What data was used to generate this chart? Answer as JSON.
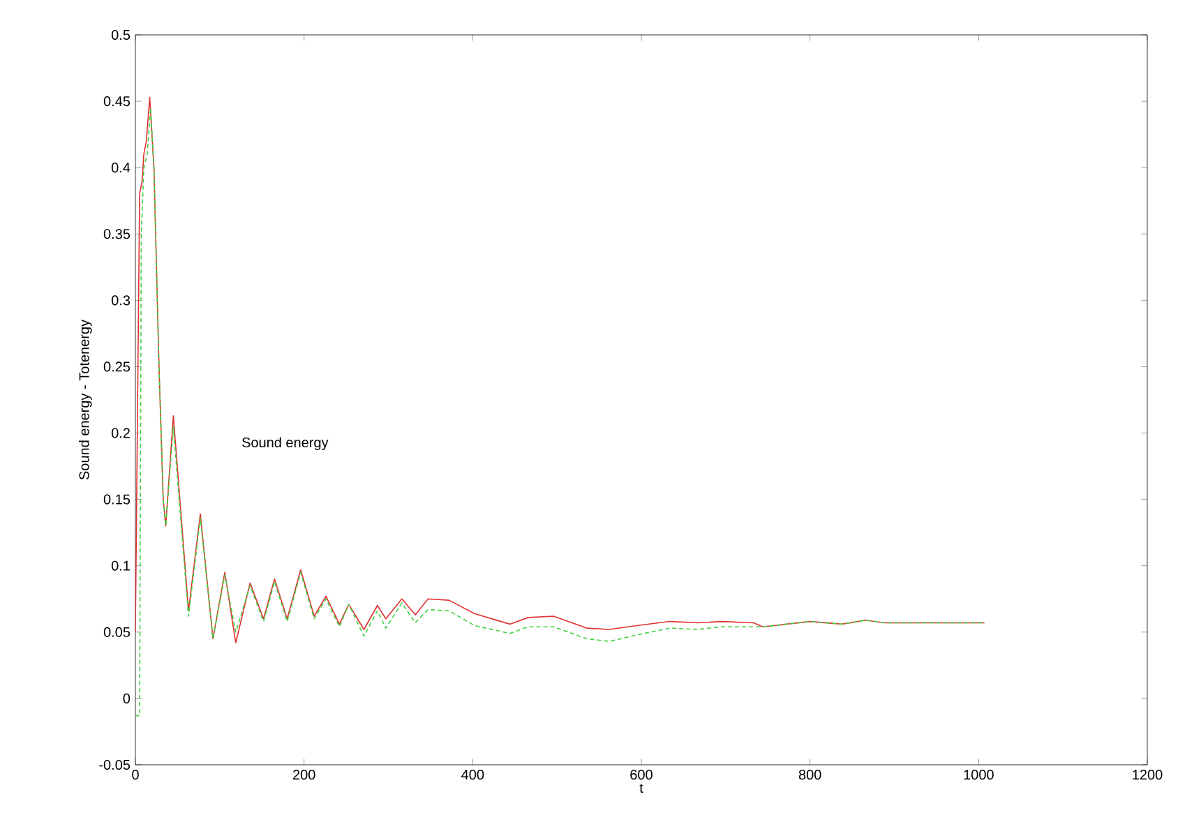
{
  "chart_data": {
    "type": "line",
    "xlabel": "t",
    "ylabel": "Sound energy - Totenergy",
    "annotations": [
      "Sound energy"
    ],
    "xlim": [
      0,
      1200
    ],
    "ylim": [
      -0.05,
      0.5
    ],
    "xticks": [
      0,
      200,
      400,
      600,
      800,
      1000,
      1200
    ],
    "yticks": [
      -0.05,
      0,
      0.05,
      0.1,
      0.15,
      0.2,
      0.25,
      0.3,
      0.35,
      0.4,
      0.45,
      0.5
    ],
    "marker": "none",
    "series": [
      {
        "color": "#e03030",
        "line_style": "solid",
        "x": [
          0,
          5,
          8,
          10,
          13,
          17,
          22,
          28,
          33,
          36,
          45,
          63,
          77,
          92,
          106,
          119,
          136,
          152,
          165,
          180,
          196,
          212,
          226,
          242,
          253,
          271,
          287,
          297,
          316,
          332,
          347,
          372,
          402,
          444,
          466,
          496,
          535,
          562,
          596,
          634,
          667,
          695,
          733,
          744,
          800,
          838,
          866,
          888,
          1007
        ],
        "values": [
          0.05,
          0.38,
          0.39,
          0.41,
          0.42,
          0.453,
          0.4,
          0.25,
          0.15,
          0.13,
          0.213,
          0.066,
          0.139,
          0.045,
          0.095,
          0.042,
          0.087,
          0.06,
          0.09,
          0.06,
          0.097,
          0.062,
          0.077,
          0.056,
          0.071,
          0.052,
          0.07,
          0.06,
          0.075,
          0.063,
          0.075,
          0.074,
          0.064,
          0.056,
          0.061,
          0.062,
          0.053,
          0.052,
          0.055,
          0.058,
          0.057,
          0.058,
          0.057,
          0.054,
          0.058,
          0.056,
          0.059,
          0.057,
          0.057
        ]
      },
      {
        "color": "#40d040",
        "line_style": "dashed",
        "x": [
          0,
          5,
          7,
          10,
          14,
          18,
          22,
          28,
          33,
          36,
          45,
          63,
          77,
          92,
          106,
          119,
          136,
          152,
          165,
          180,
          196,
          212,
          226,
          242,
          253,
          271,
          287,
          297,
          316,
          332,
          347,
          372,
          402,
          444,
          466,
          496,
          535,
          562,
          596,
          634,
          667,
          695,
          733,
          744,
          800,
          838,
          866,
          888,
          1007
        ],
        "values": [
          -0.013,
          -0.013,
          0.35,
          0.4,
          0.41,
          0.445,
          0.4,
          0.25,
          0.15,
          0.13,
          0.205,
          0.062,
          0.136,
          0.045,
          0.093,
          0.05,
          0.085,
          0.058,
          0.088,
          0.058,
          0.095,
          0.06,
          0.075,
          0.054,
          0.071,
          0.047,
          0.066,
          0.053,
          0.072,
          0.057,
          0.067,
          0.066,
          0.055,
          0.049,
          0.054,
          0.054,
          0.045,
          0.043,
          0.048,
          0.053,
          0.052,
          0.054,
          0.054,
          0.054,
          0.058,
          0.056,
          0.059,
          0.057,
          0.057
        ]
      }
    ]
  }
}
